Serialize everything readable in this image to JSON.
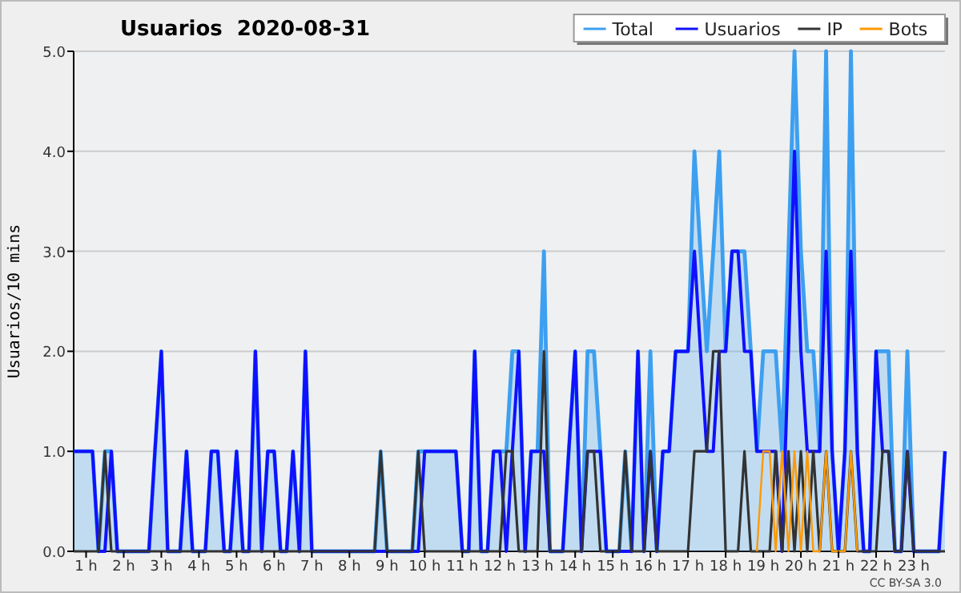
{
  "chart_data": {
    "type": "line",
    "title": "Usuarios  2020-08-31",
    "ylabel": "Usuarios/10 mins",
    "x": [
      0.67,
      0.83,
      1,
      1.17,
      1.33,
      1.5,
      1.67,
      1.83,
      2,
      2.17,
      2.33,
      2.5,
      2.67,
      2.83,
      3,
      3.17,
      3.33,
      3.5,
      3.67,
      3.83,
      4,
      4.17,
      4.33,
      4.5,
      4.67,
      4.83,
      5,
      5.17,
      5.33,
      5.5,
      5.67,
      5.83,
      6,
      6.17,
      6.33,
      6.5,
      6.67,
      6.83,
      7,
      7.17,
      7.33,
      7.5,
      7.67,
      7.83,
      8,
      8.17,
      8.33,
      8.5,
      8.67,
      8.83,
      9,
      9.17,
      9.33,
      9.5,
      9.67,
      9.83,
      10,
      10.17,
      10.33,
      10.5,
      10.67,
      10.83,
      11,
      11.17,
      11.33,
      11.5,
      11.67,
      11.83,
      12,
      12.17,
      12.33,
      12.5,
      12.67,
      12.83,
      13,
      13.17,
      13.33,
      13.5,
      13.67,
      13.83,
      14,
      14.17,
      14.33,
      14.5,
      14.67,
      14.83,
      15,
      15.17,
      15.33,
      15.5,
      15.67,
      15.83,
      16,
      16.17,
      16.33,
      16.5,
      16.67,
      16.83,
      17,
      17.17,
      17.33,
      17.5,
      17.67,
      17.83,
      18,
      18.17,
      18.33,
      18.5,
      18.67,
      18.83,
      19,
      19.17,
      19.33,
      19.5,
      19.67,
      19.83,
      20,
      20.17,
      20.33,
      20.5,
      20.67,
      20.83,
      21,
      21.17,
      21.33,
      21.5,
      21.67,
      21.83,
      22,
      22.17,
      22.33,
      22.5,
      22.67,
      22.83,
      23,
      23.17,
      23.33,
      23.5,
      23.67,
      23.83
    ],
    "series": [
      {
        "name": "Total",
        "type": "area",
        "color": "#3d9ff0",
        "values": [
          1,
          1,
          1,
          1,
          0,
          1,
          1,
          0,
          0,
          0,
          0,
          0,
          0,
          1,
          2,
          0,
          0,
          0,
          1,
          0,
          0,
          0,
          1,
          1,
          0,
          0,
          1,
          0,
          0,
          2,
          0,
          1,
          1,
          0,
          0,
          1,
          0,
          2,
          0,
          0,
          0,
          0,
          0,
          0,
          0,
          0,
          0,
          0,
          0,
          1,
          0,
          0,
          0,
          0,
          0,
          1,
          1,
          1,
          1,
          1,
          1,
          1,
          0,
          0,
          2,
          0,
          0,
          1,
          1,
          1,
          2,
          2,
          0,
          1,
          1,
          3,
          0,
          0,
          0,
          1,
          2,
          0,
          2,
          2,
          1,
          0,
          0,
          0,
          1,
          0,
          2,
          0,
          2,
          0,
          1,
          1,
          2,
          2,
          2,
          4,
          3,
          2,
          3,
          4,
          2,
          3,
          3,
          3,
          2,
          1,
          2,
          2,
          2,
          1,
          3,
          5,
          3,
          2,
          2,
          1,
          5,
          1,
          0,
          1,
          5,
          1,
          0,
          0,
          2,
          2,
          2,
          0,
          0,
          2,
          0,
          0,
          0,
          0,
          0,
          1
        ]
      },
      {
        "name": "Usuarios",
        "color": "#1010ff",
        "values": [
          1,
          1,
          1,
          1,
          0,
          0,
          1,
          0,
          0,
          0,
          0,
          0,
          0,
          1,
          2,
          0,
          0,
          0,
          1,
          0,
          0,
          0,
          1,
          1,
          0,
          0,
          1,
          0,
          0,
          2,
          0,
          1,
          1,
          0,
          0,
          1,
          0,
          2,
          0,
          0,
          0,
          0,
          0,
          0,
          0,
          0,
          0,
          0,
          0,
          0,
          0,
          0,
          0,
          0,
          0,
          0,
          1,
          1,
          1,
          1,
          1,
          1,
          0,
          0,
          2,
          0,
          0,
          1,
          1,
          0,
          1,
          2,
          0,
          1,
          1,
          1,
          0,
          0,
          0,
          1,
          2,
          0,
          1,
          1,
          1,
          0,
          0,
          0,
          0,
          0,
          2,
          0,
          1,
          0,
          1,
          1,
          2,
          2,
          2,
          3,
          2,
          1,
          1,
          2,
          2,
          3,
          3,
          2,
          2,
          1,
          1,
          1,
          1,
          0,
          2,
          4,
          2,
          1,
          1,
          1,
          3,
          1,
          0,
          1,
          3,
          1,
          0,
          0,
          2,
          1,
          1,
          0,
          0,
          1,
          0,
          0,
          0,
          0,
          0,
          1
        ]
      },
      {
        "name": "IP",
        "color": "#333333",
        "values": [
          0,
          0,
          0,
          0,
          0,
          1,
          0,
          0,
          0,
          0,
          0,
          0,
          0,
          0,
          0,
          0,
          0,
          0,
          0,
          0,
          0,
          0,
          0,
          0,
          0,
          0,
          0,
          0,
          0,
          0,
          0,
          0,
          0,
          0,
          0,
          0,
          0,
          0,
          0,
          0,
          0,
          0,
          0,
          0,
          0,
          0,
          0,
          0,
          0,
          1,
          0,
          0,
          0,
          0,
          0,
          1,
          0,
          0,
          0,
          0,
          0,
          0,
          0,
          0,
          0,
          0,
          0,
          0,
          0,
          1,
          1,
          0,
          0,
          0,
          0,
          2,
          0,
          0,
          0,
          0,
          0,
          0,
          1,
          1,
          0,
          0,
          0,
          0,
          1,
          0,
          0,
          0,
          1,
          0,
          0,
          0,
          0,
          0,
          0,
          1,
          1,
          1,
          2,
          2,
          0,
          0,
          0,
          1,
          0,
          0,
          0,
          0,
          1,
          0,
          1,
          0,
          1,
          0,
          1,
          0,
          1,
          0,
          0,
          0,
          1,
          0,
          0,
          0,
          0,
          1,
          1,
          0,
          0,
          1,
          0,
          0,
          0,
          0,
          0,
          0
        ]
      },
      {
        "name": "Bots",
        "color": "#ff9900",
        "values": [
          null,
          null,
          null,
          null,
          null,
          null,
          null,
          null,
          null,
          null,
          null,
          null,
          null,
          null,
          null,
          null,
          null,
          null,
          null,
          null,
          null,
          null,
          null,
          null,
          null,
          null,
          null,
          null,
          null,
          null,
          null,
          null,
          null,
          null,
          null,
          null,
          null,
          null,
          null,
          null,
          null,
          null,
          null,
          null,
          null,
          null,
          null,
          null,
          null,
          null,
          null,
          null,
          null,
          null,
          null,
          null,
          null,
          null,
          null,
          null,
          null,
          null,
          null,
          null,
          null,
          null,
          null,
          null,
          null,
          null,
          null,
          null,
          null,
          null,
          null,
          null,
          null,
          null,
          null,
          null,
          null,
          null,
          null,
          null,
          null,
          null,
          null,
          null,
          null,
          null,
          null,
          null,
          null,
          null,
          null,
          null,
          null,
          null,
          null,
          null,
          null,
          null,
          null,
          null,
          null,
          null,
          null,
          null,
          null,
          0,
          1,
          1,
          0,
          1,
          0,
          1,
          0,
          1,
          0,
          0,
          1,
          0,
          0,
          0,
          1,
          0,
          null,
          null,
          null,
          null,
          null,
          null,
          null,
          null,
          null,
          null,
          null,
          null,
          null,
          null
        ]
      }
    ],
    "xlim": [
      0.67,
      23.83
    ],
    "xticks": [
      {
        "value": 1,
        "label": "1 h"
      },
      {
        "value": 2,
        "label": "2 h"
      },
      {
        "value": 3,
        "label": "3 h"
      },
      {
        "value": 4,
        "label": "4 h"
      },
      {
        "value": 5,
        "label": "5 h"
      },
      {
        "value": 6,
        "label": "6 h"
      },
      {
        "value": 7,
        "label": "7 h"
      },
      {
        "value": 8,
        "label": "8 h"
      },
      {
        "value": 9,
        "label": "9 h"
      },
      {
        "value": 10,
        "label": "10 h"
      },
      {
        "value": 11,
        "label": "11 h"
      },
      {
        "value": 12,
        "label": "12 h"
      },
      {
        "value": 13,
        "label": "13 h"
      },
      {
        "value": 14,
        "label": "14 h"
      },
      {
        "value": 15,
        "label": "15 h"
      },
      {
        "value": 16,
        "label": "16 h"
      },
      {
        "value": 17,
        "label": "17 h"
      },
      {
        "value": 18,
        "label": "18 h"
      },
      {
        "value": 19,
        "label": "19 h"
      },
      {
        "value": 20,
        "label": "20 h"
      },
      {
        "value": 21,
        "label": "21 h"
      },
      {
        "value": 22,
        "label": "22 h"
      },
      {
        "value": 23,
        "label": "23 h"
      }
    ],
    "ylim": [
      0,
      5
    ],
    "yticks": [
      {
        "value": 0,
        "label": "0.0"
      },
      {
        "value": 1,
        "label": "1.0"
      },
      {
        "value": 2,
        "label": "2.0"
      },
      {
        "value": 3,
        "label": "3.0"
      },
      {
        "value": 4,
        "label": "4.0"
      },
      {
        "value": 5,
        "label": "5.0"
      }
    ],
    "grid": "y",
    "legend": "top right",
    "marker": "none",
    "line_style": "solid",
    "annotations": [
      "CC BY-SA 3.0"
    ]
  }
}
